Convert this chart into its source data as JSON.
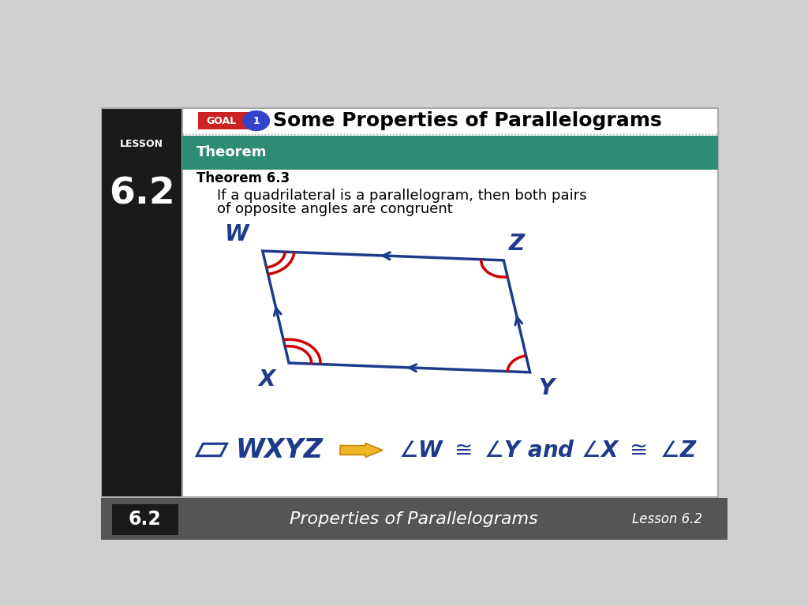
{
  "bg_color": "#d0d0d0",
  "white_bg": "#ffffff",
  "lesson_box_color": "#1a1a1a",
  "lesson_text": "LESSON",
  "lesson_number": "6.2",
  "header_title": "Some Properties of Parallelograms",
  "theorem_bar_color": "#2e8b74",
  "theorem_bar_text": "Theorem",
  "theorem_label": "Theorem 6.3",
  "theorem_body_line1": "If a quadrilateral is a parallelogram, then both pairs",
  "theorem_body_line2": "of opposite angles are congruent",
  "para_color": "#1e3a8a",
  "angle_color": "#cc0000",
  "footer_bg": "#555555",
  "footer_text": "Properties of Parallelograms",
  "footer_right": "Lesson 6.2",
  "goal_red": "#cc2222",
  "goal_blue": "#3344cc",
  "arrow_yellow": "#f0b429",
  "arrow_yellow_edge": "#c88800"
}
